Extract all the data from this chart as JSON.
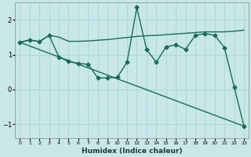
{
  "xlabel": "Humidex (Indice chaleur)",
  "x": [
    0,
    1,
    2,
    3,
    4,
    5,
    6,
    7,
    8,
    9,
    10,
    11,
    12,
    13,
    14,
    15,
    16,
    17,
    18,
    19,
    20,
    21,
    22,
    23
  ],
  "line1_y": [
    1.35,
    1.42,
    1.37,
    1.55,
    1.5,
    1.38,
    1.38,
    1.39,
    1.41,
    1.43,
    1.46,
    1.49,
    1.52,
    1.54,
    1.55,
    1.57,
    1.59,
    1.61,
    1.63,
    1.65,
    1.65,
    1.65,
    1.67,
    1.7
  ],
  "line2_y": [
    1.35,
    1.42,
    1.37,
    1.55,
    0.93,
    0.8,
    0.75,
    0.72,
    0.33,
    0.33,
    0.35,
    0.78,
    2.35,
    1.15,
    0.78,
    1.22,
    1.28,
    1.15,
    1.55,
    1.6,
    1.55,
    1.2,
    0.07,
    -1.05
  ],
  "line3_x": [
    0,
    23
  ],
  "line3_y": [
    1.35,
    -1.05
  ],
  "color": "#1a6b5a",
  "background_color": "#c8e8e8",
  "grid_color": "#b0d8d8",
  "ylim": [
    -1.4,
    2.5
  ],
  "xlim": [
    -0.5,
    23.5
  ],
  "yticks": [
    -1,
    0,
    1,
    2
  ],
  "xticks": [
    0,
    1,
    2,
    3,
    4,
    5,
    6,
    7,
    8,
    9,
    10,
    11,
    12,
    13,
    14,
    15,
    16,
    17,
    18,
    19,
    20,
    21,
    22,
    23
  ],
  "marker": "D",
  "markersize": 2.5,
  "linewidth": 1.0
}
